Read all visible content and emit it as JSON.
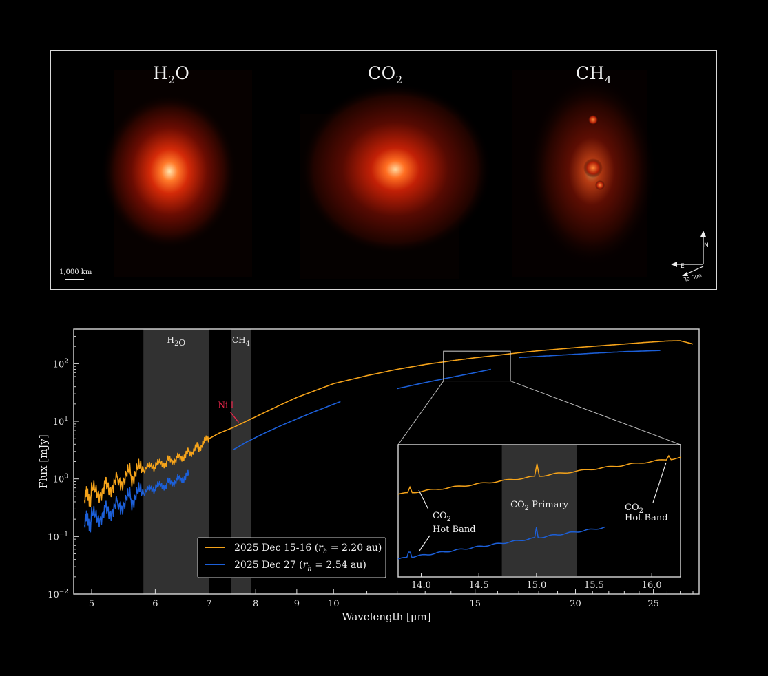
{
  "images": [
    {
      "molecule": "H",
      "sub": "2",
      "rest": "O"
    },
    {
      "molecule": "CO",
      "sub": "2",
      "rest": ""
    },
    {
      "molecule": "CH",
      "sub": "4",
      "rest": ""
    }
  ],
  "scale_bar": "1,000 km",
  "compass": {
    "north": "N",
    "east": "E",
    "sun": "To Sun"
  },
  "colors": {
    "orange": "#f5a31a",
    "blue": "#1c5fd8",
    "band": "#3a3a3a",
    "ni": "#e8264a"
  },
  "chart_data": {
    "type": "line",
    "xlabel": "Wavelength [μm]",
    "ylabel": "Flux [mJy]",
    "xscale": "log",
    "yscale": "log",
    "xlim": [
      4.75,
      28.5
    ],
    "ylim": [
      0.01,
      400
    ],
    "xticks": [
      5,
      6,
      7,
      8,
      9,
      10,
      15,
      20,
      25
    ],
    "yticks": [
      {
        "value": 0.01,
        "base": "10",
        "exp": "−2"
      },
      {
        "value": 0.1,
        "base": "10",
        "exp": "−1"
      },
      {
        "value": 1,
        "base": "10",
        "exp": "0"
      },
      {
        "value": 10,
        "base": "10",
        "exp": "1"
      },
      {
        "value": 100,
        "base": "10",
        "exp": "2"
      }
    ],
    "bands": [
      {
        "label": "H",
        "sub": "2",
        "rest": "O",
        "x0": 5.8,
        "x1": 7.0
      },
      {
        "label": "CH",
        "sub": "4",
        "rest": "",
        "x0": 7.45,
        "x1": 7.9
      }
    ],
    "annotation": {
      "text": "Ni I",
      "x": 7.65,
      "y": 8.8
    },
    "legend": {
      "placement": "lower-center",
      "entries": [
        {
          "label": "2025 Dec 15-16 (",
          "rh": "r",
          "sub": "h",
          "value": " = 2.20 au)"
        },
        {
          "label": "2025 Dec 27 (",
          "rh": "r",
          "sub": "h",
          "value": " = 2.54 au)"
        }
      ]
    },
    "series": [
      {
        "key": "dec15",
        "segments": [
          {
            "x": [
              4.9,
              5.0,
              5.2,
              5.4,
              5.6,
              5.8,
              6.0,
              6.2,
              6.4,
              6.6,
              6.8,
              7.0,
              7.2,
              7.5,
              8.0,
              8.5,
              9.0,
              10.0,
              11.0,
              12.0,
              13.0,
              14.0,
              15.0,
              16.0,
              17.0,
              18.0,
              20.0,
              22.0,
              24.0,
              26.0,
              27.0,
              28.0
            ],
            "y": [
              0.42,
              0.55,
              0.7,
              0.95,
              1.2,
              1.45,
              1.7,
              2.0,
              2.3,
              2.8,
              3.6,
              5.0,
              6.2,
              7.8,
              12,
              18,
              26,
              45,
              62,
              80,
              97,
              112,
              127,
              140,
              155,
              168,
              190,
              210,
              230,
              248,
              250,
              220
            ]
          }
        ]
      },
      {
        "key": "dec27",
        "segments": [
          {
            "x": [
              4.9,
              5.0,
              5.2,
              5.4,
              5.6,
              5.8,
              6.0,
              6.2,
              6.4,
              6.6
            ],
            "y": [
              0.16,
              0.2,
              0.27,
              0.36,
              0.46,
              0.58,
              0.7,
              0.82,
              0.98,
              1.15
            ]
          },
          {
            "x": [
              7.5,
              7.8,
              8.2,
              8.6,
              9.0,
              9.5,
              10.2
            ],
            "y": [
              3.2,
              4.4,
              6.2,
              8.4,
              11,
              15,
              22
            ]
          },
          {
            "x": [
              12.0,
              13.0,
              14.0,
              15.0,
              15.7
            ],
            "y": [
              37,
              47,
              58,
              70,
              80
            ]
          },
          {
            "x": [
              17.0,
              19.0,
              21.0,
              23.0,
              25.5
            ],
            "y": [
              128,
              140,
              152,
              162,
              170
            ]
          }
        ]
      }
    ],
    "zoom_box": {
      "x0": 13.7,
      "x1": 16.6,
      "y0": 50,
      "y1": 165
    },
    "inset": {
      "xlim": [
        13.8,
        16.25
      ],
      "xticks": [
        14.0,
        14.5,
        15.0,
        15.5,
        16.0
      ],
      "band": {
        "x0": 14.7,
        "x1": 15.35,
        "label": "CO",
        "sub": "2",
        "rest": " Primary"
      },
      "labels": [
        {
          "line1": "CO",
          "sub": "2",
          "line2": "Hot Band",
          "side": "left"
        },
        {
          "line1": "CO",
          "sub": "2",
          "line2": "Hot Band",
          "side": "right"
        }
      ]
    }
  }
}
